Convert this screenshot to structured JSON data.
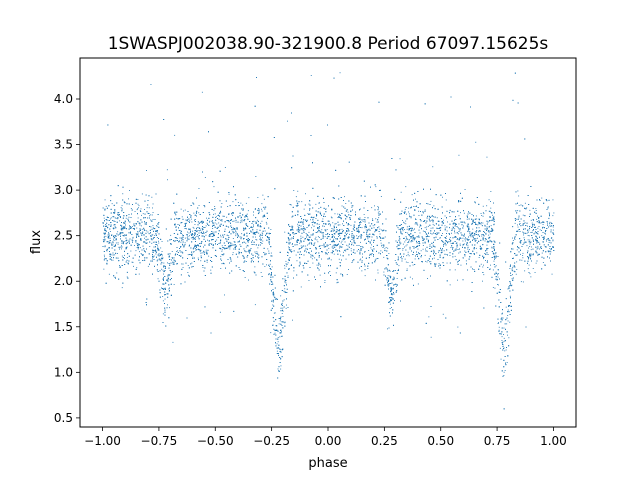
{
  "chart_data": {
    "type": "scatter",
    "title": "1SWASPJ002038.90-321900.8 Period 67097.15625s",
    "xlabel": "phase",
    "ylabel": "flux",
    "xlim": [
      -1.1,
      1.1
    ],
    "ylim": [
      0.4,
      4.45
    ],
    "xticks": [
      -1.0,
      -0.75,
      -0.5,
      -0.25,
      0.0,
      0.25,
      0.5,
      0.75,
      1.0
    ],
    "xtick_labels": [
      "−1.00",
      "−0.75",
      "−0.50",
      "−0.25",
      "0.00",
      "0.25",
      "0.50",
      "0.75",
      "1.00"
    ],
    "yticks": [
      0.5,
      1.0,
      1.5,
      2.0,
      2.5,
      3.0,
      3.5,
      4.0
    ],
    "ytick_labels": [
      "0.5",
      "1.0",
      "1.5",
      "2.0",
      "2.5",
      "3.0",
      "3.5",
      "4.0"
    ],
    "grid": false,
    "marker_color": "#1f77b4",
    "series": [
      {
        "phase_range": [
          -1.0,
          1.0
        ],
        "baseline_flux": 2.5,
        "scatter_sd": 0.2,
        "dips": [
          {
            "phase": -0.72,
            "min_flux": 1.85,
            "half_width": 0.04
          },
          {
            "phase": -0.22,
            "min_flux": 1.2,
            "half_width": 0.05
          },
          {
            "phase": 0.28,
            "min_flux": 1.85,
            "half_width": 0.04
          },
          {
            "phase": 0.78,
            "min_flux": 1.2,
            "half_width": 0.05
          }
        ]
      }
    ]
  }
}
